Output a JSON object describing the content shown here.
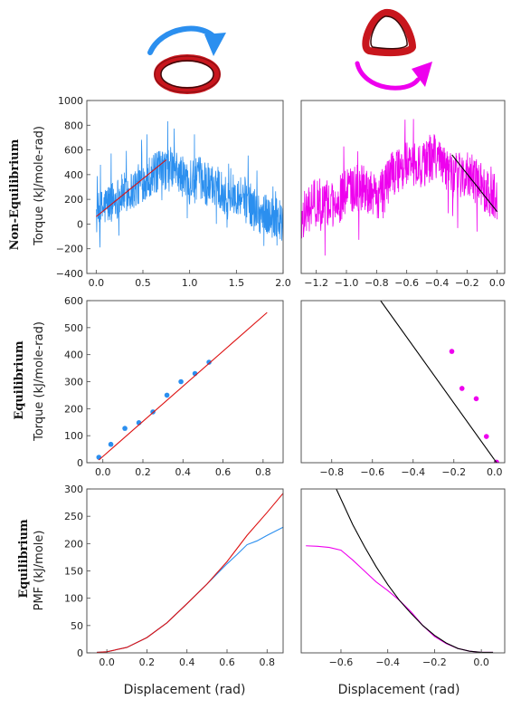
{
  "colors": {
    "blue": "#2b8fef",
    "magenta": "#ee00ee",
    "red": "#dd1111",
    "black": "#000000",
    "ring_red": "#c8161d",
    "ring_dark": "#3a0a0a"
  },
  "row_labels": [
    "Non-Equilibrium",
    "Equilibrium",
    "Equilibrium"
  ],
  "icons": [
    "circular-arrow-clockwise-blue-icon",
    "protein-ring-oval-icon",
    "protein-ring-triangle-icon",
    "circular-arrow-counterclockwise-magenta-icon"
  ],
  "chart_data": [
    {
      "type": "line",
      "panel": "top-left",
      "ylabel": "Torque (kJ/mole-rad)",
      "xlabel": "",
      "xlim": [
        -0.1,
        2.0
      ],
      "ylim": [
        -400,
        1000
      ],
      "xticks": [
        0.0,
        0.5,
        1.0,
        1.5,
        2.0
      ],
      "xtick_labels": [
        "0.0",
        "0.5",
        "1.0",
        "1.5",
        "2.0"
      ],
      "yticks": [
        -400,
        -200,
        0,
        200,
        400,
        600,
        800,
        1000
      ],
      "ytick_labels": [
        "−400",
        "−200",
        "0",
        "200",
        "400",
        "600",
        "800",
        "1000"
      ],
      "series": [
        {
          "kind": "noisy",
          "color": "blue",
          "x": [
            0.0,
            0.1,
            0.2,
            0.3,
            0.4,
            0.5,
            0.6,
            0.7,
            0.8,
            0.9,
            1.0,
            1.1,
            1.2,
            1.3,
            1.4,
            1.5,
            1.6,
            1.7,
            1.8,
            1.9,
            2.0
          ],
          "y": [
            60,
            150,
            200,
            250,
            280,
            350,
            400,
            430,
            460,
            400,
            330,
            380,
            300,
            330,
            200,
            250,
            220,
            100,
            80,
            50,
            0
          ],
          "amplitude": 170
        },
        {
          "kind": "line",
          "color": "red",
          "x": [
            0.0,
            0.75
          ],
          "y": [
            60,
            520
          ]
        }
      ]
    },
    {
      "type": "line",
      "panel": "top-right",
      "ylabel": "",
      "xlabel": "",
      "xlim": [
        -1.3,
        0.05
      ],
      "ylim": [
        -400,
        1000
      ],
      "xticks": [
        -1.2,
        -1.0,
        -0.8,
        -0.6,
        -0.4,
        -0.2,
        0.0
      ],
      "xtick_labels": [
        "−1.2",
        "−1.0",
        "−0.8",
        "−0.6",
        "−0.4",
        "−0.2",
        "0.0"
      ],
      "yticks": [],
      "ytick_labels": [],
      "series": [
        {
          "kind": "noisy",
          "color": "magenta",
          "x": [
            -1.3,
            -1.2,
            -1.1,
            -1.0,
            -0.9,
            -0.8,
            -0.7,
            -0.6,
            -0.5,
            -0.4,
            -0.3,
            -0.2,
            -0.1,
            0.0
          ],
          "y": [
            50,
            200,
            150,
            250,
            300,
            200,
            400,
            500,
            480,
            550,
            380,
            420,
            300,
            200
          ],
          "amplitude": 190
        },
        {
          "kind": "line",
          "color": "black",
          "x": [
            -0.3,
            0.0
          ],
          "y": [
            560,
            100
          ]
        }
      ]
    },
    {
      "type": "scatter",
      "panel": "middle-left",
      "ylabel": "Torque (kJ/mole-rad)",
      "xlabel": "",
      "xlim": [
        -0.08,
        0.9
      ],
      "ylim": [
        0,
        600
      ],
      "xticks": [
        0.0,
        0.2,
        0.4,
        0.6,
        0.8
      ],
      "xtick_labels": [
        "0.0",
        "0.2",
        "0.4",
        "0.6",
        "0.8"
      ],
      "yticks": [
        0,
        100,
        200,
        300,
        400,
        500,
        600
      ],
      "ytick_labels": [
        "0",
        "100",
        "200",
        "300",
        "400",
        "500",
        "600"
      ],
      "series": [
        {
          "kind": "points",
          "color": "blue",
          "x": [
            -0.02,
            0.04,
            0.11,
            0.18,
            0.25,
            0.32,
            0.39,
            0.46,
            0.53
          ],
          "y": [
            20,
            68,
            127,
            148,
            188,
            250,
            300,
            330,
            372
          ]
        },
        {
          "kind": "line",
          "color": "red",
          "x": [
            -0.02,
            0.82
          ],
          "y": [
            10,
            556
          ]
        }
      ]
    },
    {
      "type": "scatter",
      "panel": "middle-right",
      "ylabel": "",
      "xlabel": "",
      "xlim": [
        -0.95,
        0.05
      ],
      "ylim": [
        0,
        600
      ],
      "xticks": [
        -0.8,
        -0.6,
        -0.4,
        -0.2,
        0.0
      ],
      "xtick_labels": [
        "−0.8",
        "−0.6",
        "−0.4",
        "−0.2",
        "0.0"
      ],
      "yticks": [],
      "ytick_labels": [],
      "series": [
        {
          "kind": "points",
          "color": "magenta",
          "x": [
            -0.21,
            -0.16,
            -0.09,
            -0.04,
            0.01
          ],
          "y": [
            412,
            275,
            237,
            97,
            2
          ]
        },
        {
          "kind": "line",
          "color": "black",
          "x": [
            -0.56,
            0.01
          ],
          "y": [
            600,
            0
          ]
        }
      ]
    },
    {
      "type": "line",
      "panel": "bottom-left",
      "ylabel": "PMF (kJ/mole)",
      "xlabel": "Displacement (rad)",
      "xlim": [
        -0.1,
        0.88
      ],
      "ylim": [
        0,
        300
      ],
      "xticks": [
        0.0,
        0.2,
        0.4,
        0.6,
        0.8
      ],
      "xtick_labels": [
        "0.0",
        "0.2",
        "0.4",
        "0.6",
        "0.8"
      ],
      "yticks": [
        0,
        50,
        100,
        150,
        200,
        250,
        300
      ],
      "ytick_labels": [
        "0",
        "50",
        "100",
        "150",
        "200",
        "250",
        "300"
      ],
      "series": [
        {
          "kind": "line",
          "color": "blue",
          "x": [
            -0.05,
            0.0,
            0.1,
            0.2,
            0.3,
            0.4,
            0.5,
            0.6,
            0.65,
            0.7,
            0.75,
            0.8,
            0.88
          ],
          "y": [
            1,
            2,
            10,
            28,
            55,
            90,
            126,
            163,
            180,
            198,
            205,
            215,
            230
          ]
        },
        {
          "kind": "line",
          "color": "red",
          "x": [
            -0.05,
            0.0,
            0.1,
            0.2,
            0.3,
            0.4,
            0.5,
            0.6,
            0.7,
            0.8,
            0.88
          ],
          "y": [
            1,
            2,
            10,
            28,
            55,
            90,
            126,
            167,
            215,
            257,
            292
          ]
        }
      ]
    },
    {
      "type": "line",
      "panel": "bottom-right",
      "ylabel": "",
      "xlabel": "Displacement (rad)",
      "xlim": [
        -0.77,
        0.1
      ],
      "ylim": [
        0,
        300
      ],
      "xticks": [
        -0.6,
        -0.4,
        -0.2,
        0.0
      ],
      "xtick_labels": [
        "−0.6",
        "−0.4",
        "−0.2",
        "0.0"
      ],
      "yticks": [],
      "ytick_labels": [],
      "series": [
        {
          "kind": "line",
          "color": "magenta",
          "x": [
            -0.75,
            -0.7,
            -0.65,
            -0.6,
            -0.55,
            -0.5,
            -0.45,
            -0.4,
            -0.35,
            -0.3,
            -0.25,
            -0.2,
            -0.15,
            -0.1,
            -0.05,
            0.0,
            0.05
          ],
          "y": [
            196,
            195,
            193,
            188,
            170,
            150,
            130,
            114,
            96,
            75,
            50,
            30,
            17,
            8,
            3,
            1,
            1
          ]
        },
        {
          "kind": "line",
          "color": "black",
          "x": [
            -0.62,
            -0.55,
            -0.5,
            -0.45,
            -0.4,
            -0.35,
            -0.3,
            -0.25,
            -0.2,
            -0.15,
            -0.1,
            -0.05,
            0.0,
            0.05
          ],
          "y": [
            300,
            235,
            195,
            158,
            125,
            96,
            72,
            50,
            32,
            18,
            8,
            3,
            1,
            1
          ]
        }
      ]
    }
  ]
}
